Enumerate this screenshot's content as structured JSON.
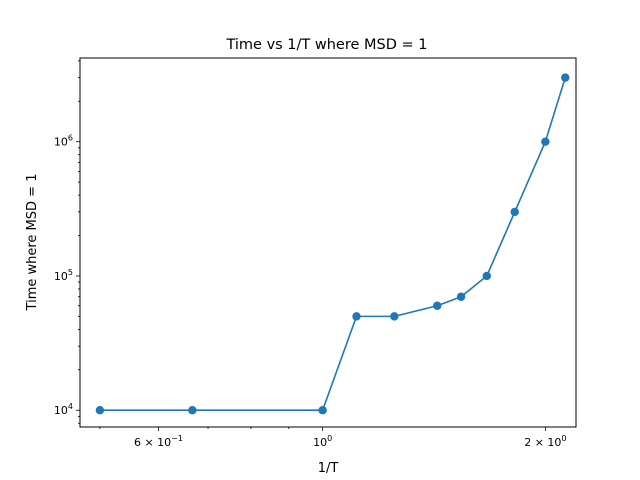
{
  "chart_data": {
    "type": "line",
    "title": "Time vs 1/T where MSD = 1",
    "xlabel": "1/T",
    "ylabel": "Time where MSD = 1",
    "xscale": "log",
    "yscale": "log",
    "xlim": [
      0.47,
      2.2
    ],
    "ylim": [
      7500,
      4200000
    ],
    "grid": false,
    "series": [
      {
        "color": "#1f77b4",
        "marker": "circle",
        "x": [
          0.5,
          0.6667,
          1.0,
          1.1111,
          1.25,
          1.4286,
          1.5385,
          1.6667,
          1.8182,
          2.0,
          2.1277
        ],
        "y": [
          10000,
          10000,
          10000,
          50000,
          50000,
          60000,
          70000,
          100000,
          300000,
          1000000,
          3000000
        ]
      }
    ],
    "xticks": [
      {
        "value": 0.6,
        "base": "6 × 10",
        "exp": "−1"
      },
      {
        "value": 1.0,
        "base": "10",
        "exp": "0"
      },
      {
        "value": 2.0,
        "base": "2 × 10",
        "exp": "0"
      }
    ],
    "yticks": [
      {
        "value": 10000,
        "base": "10",
        "exp": "4"
      },
      {
        "value": 100000,
        "base": "10",
        "exp": "5"
      },
      {
        "value": 1000000,
        "base": "10",
        "exp": "6"
      }
    ]
  }
}
